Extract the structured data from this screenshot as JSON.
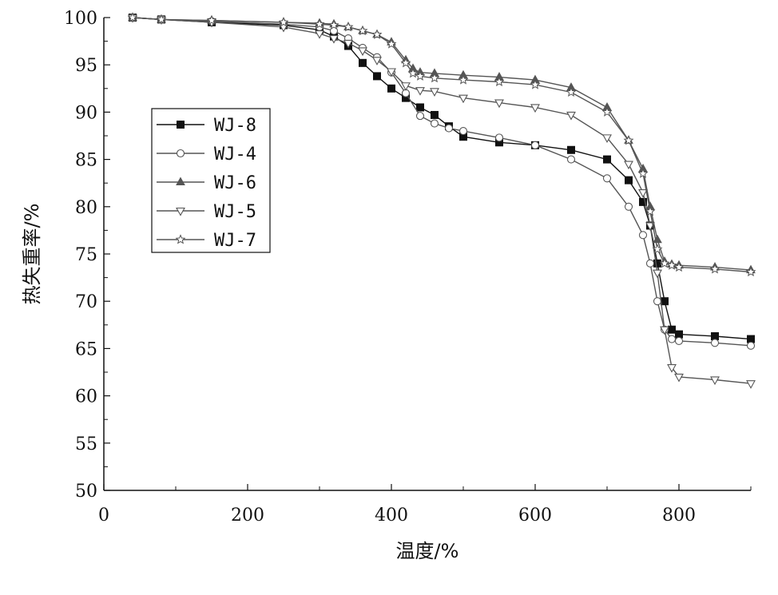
{
  "chart_data": {
    "type": "line",
    "xlabel": "温度/%",
    "ylabel": "热失重率/%",
    "xlim": [
      0,
      900
    ],
    "ylim": [
      50,
      100
    ],
    "xticks": [
      0,
      200,
      400,
      600,
      800
    ],
    "yticks": [
      50,
      55,
      60,
      65,
      70,
      75,
      80,
      85,
      90,
      95,
      100
    ],
    "grid": false,
    "legend_position": "upper-left",
    "series": [
      {
        "name": "WJ-8",
        "marker": "square-filled",
        "color": "#111111",
        "x": [
          40,
          80,
          150,
          250,
          300,
          320,
          340,
          360,
          380,
          400,
          420,
          440,
          460,
          480,
          500,
          550,
          600,
          650,
          700,
          730,
          750,
          760,
          770,
          780,
          790,
          800,
          850,
          900
        ],
        "y": [
          100,
          99.8,
          99.5,
          99.2,
          98.7,
          98.0,
          97.0,
          95.2,
          93.8,
          92.5,
          91.5,
          90.5,
          89.7,
          88.5,
          87.4,
          86.8,
          86.5,
          86.0,
          85.0,
          82.8,
          80.5,
          78.0,
          74.0,
          70.0,
          67.0,
          66.5,
          66.3,
          66.0
        ]
      },
      {
        "name": "WJ-4",
        "marker": "circle-open",
        "color": "#555555",
        "x": [
          40,
          80,
          150,
          250,
          300,
          320,
          340,
          360,
          380,
          400,
          420,
          440,
          460,
          480,
          500,
          550,
          600,
          650,
          700,
          730,
          750,
          760,
          770,
          780,
          790,
          800,
          850,
          900
        ],
        "y": [
          100,
          99.8,
          99.6,
          99.3,
          99.0,
          98.6,
          97.8,
          96.8,
          95.8,
          94.2,
          92.0,
          89.6,
          88.8,
          88.3,
          88.0,
          87.3,
          86.5,
          85.0,
          83.0,
          80.0,
          77.0,
          74.0,
          70.0,
          67.0,
          66.0,
          65.8,
          65.6,
          65.3
        ]
      },
      {
        "name": "WJ-6",
        "marker": "triangle-up-filled",
        "color": "#555555",
        "x": [
          40,
          80,
          150,
          250,
          300,
          320,
          340,
          360,
          380,
          400,
          420,
          430,
          440,
          460,
          500,
          550,
          600,
          650,
          700,
          730,
          750,
          760,
          770,
          780,
          790,
          800,
          850,
          900
        ],
        "y": [
          100,
          99.8,
          99.7,
          99.5,
          99.4,
          99.3,
          99.0,
          98.6,
          98.2,
          97.4,
          95.5,
          94.6,
          94.2,
          94.1,
          93.9,
          93.7,
          93.4,
          92.6,
          90.5,
          87.0,
          84.0,
          80.0,
          76.5,
          74.2,
          73.9,
          73.8,
          73.6,
          73.3
        ]
      },
      {
        "name": "WJ-5",
        "marker": "triangle-down-open",
        "color": "#555555",
        "x": [
          40,
          80,
          150,
          250,
          300,
          320,
          340,
          360,
          380,
          400,
          420,
          440,
          460,
          500,
          550,
          600,
          650,
          700,
          730,
          750,
          760,
          770,
          780,
          790,
          800,
          850,
          900
        ],
        "y": [
          100,
          99.8,
          99.5,
          99.0,
          98.3,
          97.8,
          97.3,
          96.5,
          95.5,
          94.3,
          92.8,
          92.3,
          92.2,
          91.5,
          91.0,
          90.5,
          89.7,
          87.3,
          84.5,
          81.5,
          78.0,
          73.0,
          67.0,
          63.0,
          62.0,
          61.7,
          61.3
        ]
      },
      {
        "name": "WJ-7",
        "marker": "star-open",
        "color": "#555555",
        "x": [
          40,
          80,
          150,
          250,
          300,
          320,
          340,
          360,
          380,
          400,
          420,
          430,
          440,
          460,
          500,
          550,
          600,
          650,
          700,
          730,
          750,
          760,
          770,
          780,
          790,
          800,
          850,
          900
        ],
        "y": [
          100,
          99.8,
          99.7,
          99.5,
          99.3,
          99.2,
          99.0,
          98.6,
          98.2,
          97.2,
          95.2,
          94.1,
          93.8,
          93.6,
          93.4,
          93.2,
          92.9,
          92.1,
          90.0,
          87.0,
          83.5,
          79.5,
          75.5,
          74.0,
          73.8,
          73.6,
          73.4,
          73.1
        ]
      }
    ]
  }
}
